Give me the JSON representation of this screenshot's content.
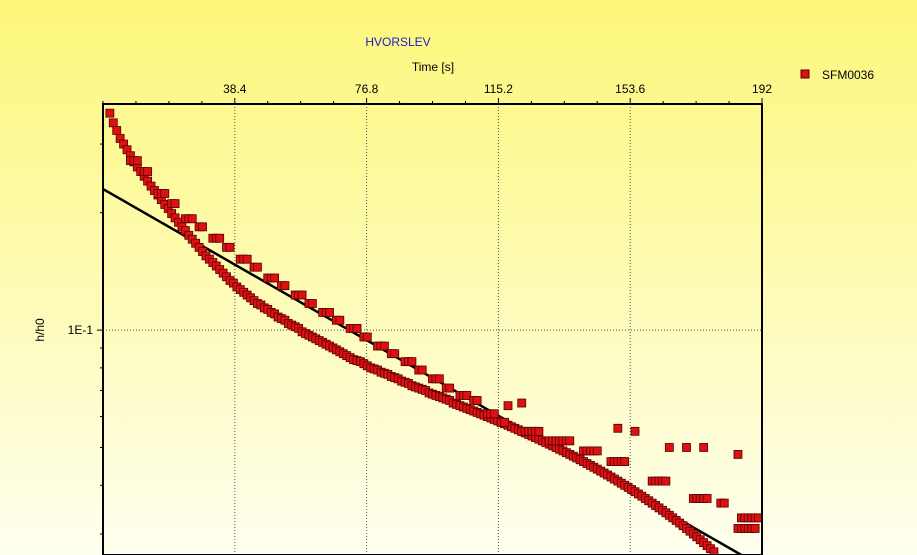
{
  "chart_data": {
    "type": "scatter",
    "title": "HVORSLEV",
    "xlabel": "Time [s]",
    "ylabel": "h/h0",
    "x_axis_position": "top",
    "xlim": [
      0,
      192
    ],
    "xticks": [
      38.4,
      76.8,
      115.2,
      153.6,
      192
    ],
    "xtick_labels": [
      "38.4",
      "76.8",
      "115.2",
      "153.6",
      "192"
    ],
    "y_scale": "log",
    "ylim": [
      0.0265,
      0.38
    ],
    "yticks": [
      0.1
    ],
    "ytick_labels": [
      "1E-1"
    ],
    "grid": true,
    "legend_position": "top-right",
    "series": [
      {
        "name": "SFM0036",
        "color": "#dd1111",
        "marker": "square",
        "points": [
          [
            2,
            0.36
          ],
          [
            3,
            0.34
          ],
          [
            4,
            0.325
          ],
          [
            5,
            0.31
          ],
          [
            6,
            0.3
          ],
          [
            7,
            0.29
          ],
          [
            8,
            0.28
          ],
          [
            9,
            0.27
          ],
          [
            10,
            0.262
          ],
          [
            11,
            0.255
          ],
          [
            12,
            0.248
          ],
          [
            13,
            0.241
          ],
          [
            14,
            0.234
          ],
          [
            15,
            0.228
          ],
          [
            16,
            0.222
          ],
          [
            17,
            0.216
          ],
          [
            18,
            0.21
          ],
          [
            19,
            0.205
          ],
          [
            20,
            0.199
          ],
          [
            21,
            0.194
          ],
          [
            22,
            0.189
          ],
          [
            23,
            0.184
          ],
          [
            24,
            0.18
          ],
          [
            25,
            0.175
          ],
          [
            26,
            0.171
          ],
          [
            27,
            0.167
          ],
          [
            28,
            0.163
          ],
          [
            29,
            0.159
          ],
          [
            30,
            0.155
          ],
          [
            31,
            0.152
          ],
          [
            32,
            0.149
          ],
          [
            33,
            0.146
          ],
          [
            34,
            0.143
          ],
          [
            35,
            0.14
          ],
          [
            36,
            0.137
          ],
          [
            37,
            0.134
          ],
          [
            38,
            0.132
          ],
          [
            39,
            0.129
          ],
          [
            40,
            0.127
          ],
          [
            41,
            0.125
          ],
          [
            42,
            0.123
          ],
          [
            43,
            0.121
          ],
          [
            44,
            0.119
          ],
          [
            45,
            0.117
          ],
          [
            46,
            0.116
          ],
          [
            47,
            0.114
          ],
          [
            48,
            0.113
          ],
          [
            49,
            0.111
          ],
          [
            50,
            0.11
          ],
          [
            51,
            0.108
          ],
          [
            52,
            0.107
          ],
          [
            53,
            0.106
          ],
          [
            54,
            0.104
          ],
          [
            55,
            0.103
          ],
          [
            56,
            0.102
          ],
          [
            57,
            0.101
          ],
          [
            58,
            0.099
          ],
          [
            59,
            0.098
          ],
          [
            60,
            0.097
          ],
          [
            61,
            0.096
          ],
          [
            62,
            0.095
          ],
          [
            63,
            0.094
          ],
          [
            64,
            0.093
          ],
          [
            65,
            0.092
          ],
          [
            66,
            0.091
          ],
          [
            67,
            0.09
          ],
          [
            68,
            0.089
          ],
          [
            69,
            0.088
          ],
          [
            70,
            0.087
          ],
          [
            71,
            0.086
          ],
          [
            72,
            0.085
          ],
          [
            73,
            0.084
          ],
          [
            74,
            0.0835
          ],
          [
            75,
            0.083
          ],
          [
            76,
            0.082
          ],
          [
            77,
            0.081
          ],
          [
            78,
            0.08
          ],
          [
            79,
            0.0795
          ],
          [
            80,
            0.079
          ],
          [
            81,
            0.078
          ],
          [
            82,
            0.0775
          ],
          [
            83,
            0.077
          ],
          [
            84,
            0.076
          ],
          [
            85,
            0.0755
          ],
          [
            86,
            0.075
          ],
          [
            87,
            0.074
          ],
          [
            88,
            0.0735
          ],
          [
            89,
            0.073
          ],
          [
            90,
            0.072
          ],
          [
            91,
            0.0715
          ],
          [
            92,
            0.071
          ],
          [
            93,
            0.0705
          ],
          [
            94,
            0.07
          ],
          [
            95,
            0.069
          ],
          [
            96,
            0.0685
          ],
          [
            97,
            0.068
          ],
          [
            98,
            0.0675
          ],
          [
            99,
            0.067
          ],
          [
            100,
            0.0665
          ],
          [
            101,
            0.066
          ],
          [
            102,
            0.065
          ],
          [
            103,
            0.0645
          ],
          [
            104,
            0.064
          ],
          [
            105,
            0.0635
          ],
          [
            106,
            0.063
          ],
          [
            107,
            0.0625
          ],
          [
            108,
            0.062
          ],
          [
            109,
            0.0615
          ],
          [
            110,
            0.061
          ],
          [
            111,
            0.0605
          ],
          [
            112,
            0.06
          ],
          [
            113,
            0.0595
          ],
          [
            114,
            0.059
          ],
          [
            115,
            0.0585
          ],
          [
            116,
            0.058
          ],
          [
            117,
            0.0575
          ],
          [
            118,
            0.057
          ],
          [
            119,
            0.0565
          ],
          [
            120,
            0.056
          ],
          [
            121,
            0.0555
          ],
          [
            122,
            0.055
          ],
          [
            123,
            0.0545
          ],
          [
            124,
            0.054
          ],
          [
            125,
            0.0535
          ],
          [
            126,
            0.053
          ],
          [
            127,
            0.0525
          ],
          [
            128,
            0.052
          ],
          [
            129,
            0.0515
          ],
          [
            130,
            0.051
          ],
          [
            131,
            0.0505
          ],
          [
            132,
            0.05
          ],
          [
            133,
            0.0495
          ],
          [
            134,
            0.049
          ],
          [
            135,
            0.0485
          ],
          [
            136,
            0.048
          ],
          [
            137,
            0.0475
          ],
          [
            138,
            0.047
          ],
          [
            139,
            0.0465
          ],
          [
            140,
            0.046
          ],
          [
            141,
            0.0455
          ],
          [
            142,
            0.045
          ],
          [
            143,
            0.0445
          ],
          [
            144,
            0.044
          ],
          [
            145,
            0.0435
          ],
          [
            146,
            0.043
          ],
          [
            147,
            0.0425
          ],
          [
            148,
            0.042
          ],
          [
            149,
            0.0415
          ],
          [
            150,
            0.041
          ],
          [
            151,
            0.0405
          ],
          [
            152,
            0.04
          ],
          [
            153,
            0.0395
          ],
          [
            154,
            0.039
          ],
          [
            155,
            0.0385
          ],
          [
            156,
            0.038
          ],
          [
            157,
            0.0375
          ],
          [
            158,
            0.037
          ],
          [
            159,
            0.0365
          ],
          [
            160,
            0.036
          ],
          [
            161,
            0.0355
          ],
          [
            162,
            0.035
          ],
          [
            163,
            0.0345
          ],
          [
            164,
            0.034
          ],
          [
            165,
            0.0335
          ],
          [
            166,
            0.033
          ],
          [
            167,
            0.0325
          ],
          [
            168,
            0.032
          ],
          [
            169,
            0.0315
          ],
          [
            170,
            0.031
          ],
          [
            171,
            0.0305
          ],
          [
            172,
            0.03
          ],
          [
            173,
            0.0295
          ],
          [
            174,
            0.029
          ],
          [
            175,
            0.0285
          ],
          [
            176,
            0.028
          ],
          [
            177,
            0.0275
          ],
          [
            178,
            0.027
          ],
          [
            185,
            0.031
          ],
          [
            186,
            0.031
          ],
          [
            187,
            0.031
          ],
          [
            188,
            0.031
          ],
          [
            189,
            0.031
          ],
          [
            190,
            0.031
          ],
          [
            186,
            0.033
          ],
          [
            187,
            0.033
          ],
          [
            188,
            0.033
          ],
          [
            189,
            0.033
          ],
          [
            190,
            0.033
          ],
          [
            191,
            0.033
          ],
          [
            160,
            0.041
          ],
          [
            161,
            0.041
          ],
          [
            162,
            0.041
          ],
          [
            163,
            0.041
          ],
          [
            164,
            0.041
          ],
          [
            172,
            0.037
          ],
          [
            173,
            0.037
          ],
          [
            174,
            0.037
          ],
          [
            175,
            0.037
          ],
          [
            176,
            0.037
          ],
          [
            180,
            0.036
          ],
          [
            181,
            0.036
          ],
          [
            148,
            0.046
          ],
          [
            149,
            0.046
          ],
          [
            150,
            0.046
          ],
          [
            151,
            0.046
          ],
          [
            152,
            0.046
          ],
          [
            140,
            0.049
          ],
          [
            141,
            0.049
          ],
          [
            142,
            0.049
          ],
          [
            143,
            0.049
          ],
          [
            144,
            0.049
          ],
          [
            130,
            0.052
          ],
          [
            131,
            0.052
          ],
          [
            132,
            0.052
          ],
          [
            133,
            0.052
          ],
          [
            134,
            0.052
          ],
          [
            135,
            0.052
          ],
          [
            136,
            0.052
          ],
          [
            122,
            0.055
          ],
          [
            123,
            0.055
          ],
          [
            124,
            0.055
          ],
          [
            125,
            0.055
          ],
          [
            126,
            0.055
          ],
          [
            127,
            0.055
          ],
          [
            112,
            0.061
          ],
          [
            113,
            0.061
          ],
          [
            114,
            0.061
          ],
          [
            116,
            0.058
          ],
          [
            117,
            0.058
          ],
          [
            104,
            0.068
          ],
          [
            105,
            0.068
          ],
          [
            106,
            0.068
          ],
          [
            108,
            0.066
          ],
          [
            109,
            0.066
          ],
          [
            96,
            0.075
          ],
          [
            97,
            0.075
          ],
          [
            98,
            0.075
          ],
          [
            100,
            0.071
          ],
          [
            101,
            0.071
          ],
          [
            88,
            0.083
          ],
          [
            89,
            0.083
          ],
          [
            90,
            0.083
          ],
          [
            92,
            0.079
          ],
          [
            93,
            0.079
          ],
          [
            80,
            0.091
          ],
          [
            81,
            0.091
          ],
          [
            82,
            0.091
          ],
          [
            84,
            0.087
          ],
          [
            85,
            0.087
          ],
          [
            72,
            0.101
          ],
          [
            73,
            0.101
          ],
          [
            74,
            0.101
          ],
          [
            76,
            0.096
          ],
          [
            77,
            0.096
          ],
          [
            64,
            0.111
          ],
          [
            65,
            0.111
          ],
          [
            66,
            0.111
          ],
          [
            68,
            0.106
          ],
          [
            69,
            0.106
          ],
          [
            56,
            0.123
          ],
          [
            57,
            0.123
          ],
          [
            58,
            0.123
          ],
          [
            60,
            0.117
          ],
          [
            61,
            0.117
          ],
          [
            48,
            0.136
          ],
          [
            49,
            0.136
          ],
          [
            50,
            0.136
          ],
          [
            52,
            0.13
          ],
          [
            53,
            0.13
          ],
          [
            40,
            0.152
          ],
          [
            41,
            0.152
          ],
          [
            42,
            0.152
          ],
          [
            44,
            0.145
          ],
          [
            45,
            0.145
          ],
          [
            32,
            0.172
          ],
          [
            33,
            0.172
          ],
          [
            34,
            0.172
          ],
          [
            36,
            0.163
          ],
          [
            37,
            0.163
          ],
          [
            24,
            0.193
          ],
          [
            25,
            0.193
          ],
          [
            26,
            0.193
          ],
          [
            28,
            0.184
          ],
          [
            29,
            0.184
          ],
          [
            16,
            0.224
          ],
          [
            17,
            0.224
          ],
          [
            18,
            0.224
          ],
          [
            20,
            0.211
          ],
          [
            21,
            0.211
          ],
          [
            8,
            0.272
          ],
          [
            9,
            0.272
          ],
          [
            10,
            0.272
          ],
          [
            12,
            0.255
          ],
          [
            13,
            0.255
          ],
          [
            165,
            0.05
          ],
          [
            170,
            0.05
          ],
          [
            175,
            0.05
          ],
          [
            185,
            0.048
          ],
          [
            150,
            0.056
          ],
          [
            155,
            0.055
          ],
          [
            118,
            0.064
          ],
          [
            122,
            0.065
          ]
        ]
      }
    ],
    "fit_line": {
      "color": "#000000",
      "points": [
        [
          0,
          0.23
        ],
        [
          186,
          0.0265
        ]
      ]
    }
  }
}
